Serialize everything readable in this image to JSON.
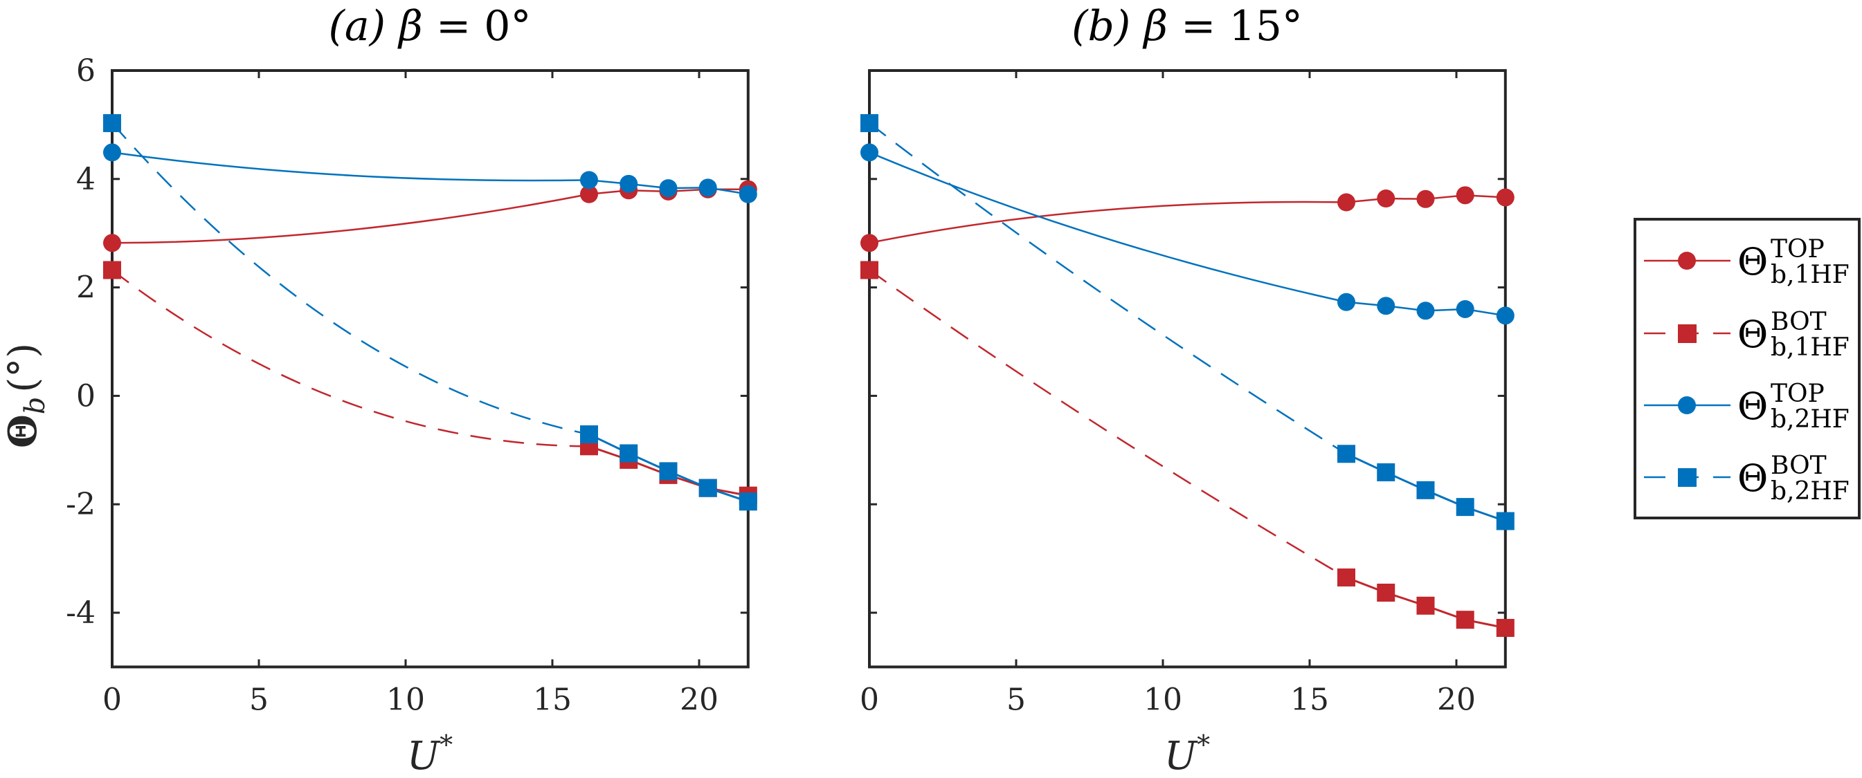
{
  "chart_data": [
    {
      "type": "line",
      "title": "(a) β = 0°",
      "xlabel": "U*",
      "ylabel": "Θb (°)",
      "xlim": [
        0,
        21.67
      ],
      "ylim": [
        -5,
        6
      ],
      "xticks": [
        0,
        5,
        10,
        15,
        20
      ],
      "xtick_labels": [
        "0",
        "5",
        "10",
        "15",
        "20"
      ],
      "yticks": [
        6,
        4,
        2,
        0,
        -2,
        -4
      ],
      "ytick_labels": [
        "6",
        "4",
        "2",
        "0",
        "-2",
        "-4"
      ],
      "grid": false,
      "series": [
        {
          "name": "Θb,1HF TOP",
          "color": "#C1272D",
          "marker": "circle",
          "linestyle": "solid",
          "x": [
            0,
            16.25,
            17.6,
            18.95,
            20.3,
            21.67
          ],
          "y": [
            2.82,
            3.72,
            3.79,
            3.77,
            3.81,
            3.81
          ],
          "fit_mid": [
            7.95,
            3.05
          ]
        },
        {
          "name": "Θb,1HF BOT",
          "color": "#C1272D",
          "marker": "square",
          "linestyle": "dashed",
          "x": [
            0,
            16.25,
            17.6,
            18.95,
            20.3,
            21.67
          ],
          "y": [
            2.32,
            -0.93,
            -1.18,
            -1.46,
            -1.7,
            -1.84
          ],
          "fit_mid": [
            7.95,
            -0.11
          ]
        },
        {
          "name": "Θb,2HF TOP",
          "color": "#0072BD",
          "marker": "circle",
          "linestyle": "solid",
          "x": [
            0,
            16.25,
            17.6,
            18.95,
            20.3,
            21.67
          ],
          "y": [
            4.49,
            3.98,
            3.91,
            3.83,
            3.84,
            3.72
          ],
          "fit_mid": [
            7.95,
            4.07
          ]
        },
        {
          "name": "Θb,2HF BOT",
          "color": "#0072BD",
          "marker": "square",
          "linestyle": "dashed",
          "x": [
            0,
            16.25,
            17.6,
            18.95,
            20.3,
            21.67
          ],
          "y": [
            5.03,
            -0.71,
            -1.06,
            -1.39,
            -1.7,
            -1.95
          ],
          "fit_mid": [
            7.95,
            1.2
          ]
        }
      ]
    },
    {
      "type": "line",
      "title": "(b) β = 15°",
      "xlabel": "U*",
      "ylabel": "",
      "xlim": [
        0,
        21.67
      ],
      "ylim": [
        -5,
        6
      ],
      "xticks": [
        0,
        5,
        10,
        15,
        20
      ],
      "xtick_labels": [
        "0",
        "5",
        "10",
        "15",
        "20"
      ],
      "yticks": [
        6,
        4,
        2,
        0,
        -2,
        -4
      ],
      "ytick_labels": [],
      "grid": false,
      "series": [
        {
          "name": "Θb,1HF TOP",
          "color": "#C1272D",
          "marker": "circle",
          "linestyle": "solid",
          "x": [
            0,
            16.25,
            17.6,
            18.95,
            20.3,
            21.67
          ],
          "y": [
            2.82,
            3.57,
            3.64,
            3.63,
            3.7,
            3.66
          ],
          "fit_mid": [
            7.85,
            3.42
          ]
        },
        {
          "name": "Θb,1HF BOT",
          "color": "#C1272D",
          "marker": "square",
          "linestyle": "dashed",
          "x": [
            0,
            16.25,
            17.6,
            18.95,
            20.3,
            21.67
          ],
          "y": [
            2.32,
            -3.35,
            -3.63,
            -3.87,
            -4.13,
            -4.28
          ],
          "fit_mid": [
            7.85,
            -0.56
          ]
        },
        {
          "name": "Θb,2HF TOP",
          "color": "#0072BD",
          "marker": "circle",
          "linestyle": "solid",
          "x": [
            0,
            16.25,
            17.6,
            18.95,
            20.3,
            21.67
          ],
          "y": [
            4.49,
            1.73,
            1.66,
            1.57,
            1.6,
            1.48
          ],
          "fit_mid": [
            7.85,
            2.94
          ]
        },
        {
          "name": "Θb,2HF BOT",
          "color": "#0072BD",
          "marker": "square",
          "linestyle": "dashed",
          "x": [
            0,
            16.25,
            17.6,
            18.95,
            20.3,
            21.67
          ],
          "y": [
            5.03,
            -1.07,
            -1.41,
            -1.74,
            -2.05,
            -2.31
          ],
          "fit_mid": [
            7.85,
            1.92
          ]
        }
      ]
    }
  ],
  "titles": {
    "a": {
      "prefix": "(a)",
      "beta": "β",
      "eq": "=",
      "value": "0°"
    },
    "b": {
      "prefix": "(b)",
      "beta": "β",
      "eq": "=",
      "value": "15°"
    }
  },
  "ylabel": {
    "theta": "Θ",
    "sub": "b",
    "unit": "(°)"
  },
  "xlabel": {
    "main": "U",
    "sup": "*"
  },
  "legend": {
    "placement": "right-outside",
    "entries": [
      {
        "symbol": "Θ",
        "sup": "TOP",
        "sub": "b,1HF",
        "color": "#C1272D",
        "marker": "circle",
        "linestyle": "solid"
      },
      {
        "symbol": "Θ",
        "sup": "BOT",
        "sub": "b,1HF",
        "color": "#C1272D",
        "marker": "square",
        "linestyle": "dashed"
      },
      {
        "symbol": "Θ",
        "sup": "TOP",
        "sub": "b,2HF",
        "color": "#0072BD",
        "marker": "circle",
        "linestyle": "solid"
      },
      {
        "symbol": "Θ",
        "sup": "BOT",
        "sub": "b,2HF",
        "color": "#0072BD",
        "marker": "square",
        "linestyle": "dashed"
      }
    ]
  }
}
